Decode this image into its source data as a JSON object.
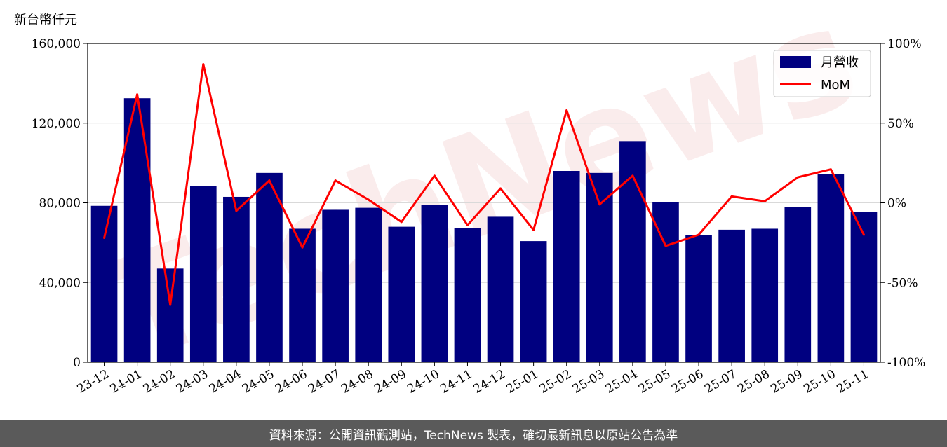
{
  "watermark": "TechNews",
  "footer": {
    "source_note": "資料來源：公開資訊觀測站，TechNews 製表，確切最新訊息以原站公告為準"
  },
  "colors": {
    "bar": "#000080",
    "line": "#ff0000"
  },
  "chart_data": {
    "type": "bar",
    "unit_label": "新台幣仟元",
    "categories": [
      "23-12",
      "24-01",
      "24-02",
      "24-03",
      "24-04",
      "24-05",
      "24-06",
      "24-07",
      "24-08",
      "24-09",
      "24-10",
      "24-11",
      "24-12",
      "25-01",
      "25-02",
      "25-03",
      "25-04",
      "25-05",
      "25-06",
      "25-07",
      "25-08",
      "25-09",
      "25-10",
      "25-11"
    ],
    "series": [
      {
        "name": "月營收",
        "type": "bar",
        "axis": "left",
        "values": [
          78500,
          132500,
          47000,
          88300,
          83000,
          95000,
          67000,
          76500,
          77500,
          68000,
          79000,
          67500,
          73000,
          60800,
          96000,
          95000,
          111000,
          80300,
          64000,
          66500,
          67000,
          78000,
          94500,
          75600
        ]
      },
      {
        "name": "MoM",
        "type": "line",
        "axis": "right",
        "values": [
          -22,
          68,
          -64,
          87,
          -5,
          14,
          -28,
          14,
          2,
          -12,
          17,
          -14,
          9,
          -17,
          58,
          -1,
          17,
          -27,
          -20,
          4,
          1,
          16,
          21,
          -20
        ]
      }
    ],
    "y_left": {
      "min": 0,
      "max": 160000,
      "ticks": [
        0,
        40000,
        80000,
        120000,
        160000
      ],
      "tick_labels": [
        "0",
        "40,000",
        "80,000",
        "120,000",
        "160,000"
      ]
    },
    "y_right": {
      "min": -100,
      "max": 100,
      "ticks": [
        -100,
        -50,
        0,
        50,
        100
      ],
      "tick_labels": [
        "-100%",
        "-50%",
        "0%",
        "50%",
        "100%"
      ]
    },
    "grid": true,
    "legend": "top-right"
  }
}
